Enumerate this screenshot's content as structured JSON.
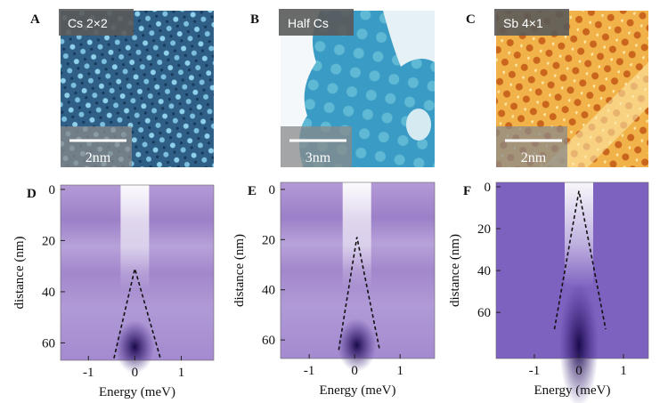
{
  "panels_top": [
    {
      "letter": "A",
      "tag": "Cs 2×2",
      "scale": "2nm"
    },
    {
      "letter": "B",
      "tag": "Half Cs",
      "scale": "3nm"
    },
    {
      "letter": "C",
      "tag": "Sb 4×1",
      "scale": "2nm"
    }
  ],
  "panels_bottom": [
    {
      "letter": "D",
      "xlabel": "Energy (meV)",
      "ylabel": "distance (nm)",
      "xlim": [
        -1.6,
        1.7
      ],
      "xticks": [
        -1,
        0,
        1
      ],
      "ylim": [
        -1.7,
        66.8
      ],
      "yticks": [
        0,
        20,
        40,
        60
      ],
      "dashed": {
        "x": [
          -0.45,
          0,
          0.55
        ],
        "y": [
          66,
          31,
          66
        ]
      }
    },
    {
      "letter": "E",
      "xlabel": "Energy (meV)",
      "ylabel": "distance (nm)",
      "xlim": [
        -1.63,
        1.76
      ],
      "xticks": [
        -1,
        0,
        1
      ],
      "ylim": [
        -2.8,
        67.4
      ],
      "yticks": [
        0,
        20,
        40,
        60
      ],
      "dashed": {
        "x": [
          -0.35,
          0.05,
          0.55
        ],
        "y": [
          64,
          19,
          64
        ]
      }
    },
    {
      "letter": "F",
      "xlabel": "Energy (meV)",
      "ylabel": "distance (nm)",
      "xlim": [
        -1.86,
        1.56
      ],
      "xticks": [
        -1,
        0,
        1
      ],
      "ylim": [
        -2.1,
        82
      ],
      "yticks": [
        0,
        20,
        40,
        60
      ],
      "dashed": {
        "x": [
          -0.55,
          0,
          0.6
        ],
        "y": [
          68,
          2,
          68
        ]
      }
    }
  ]
}
